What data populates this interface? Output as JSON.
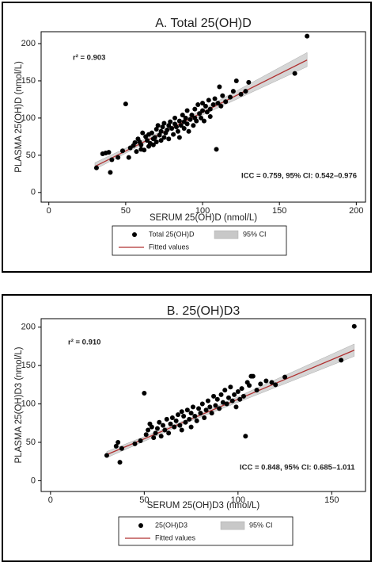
{
  "chart_data": [
    {
      "type": "scatter",
      "title": "A. Total 25(OH)D",
      "x_label": "SERUM 25(OH)D (nmol/L)",
      "y_label": "PLASMA 25(OH)D (nmol/L)",
      "xlim": [
        -5,
        206
      ],
      "ylim": [
        -13,
        216
      ],
      "xticks": [
        0,
        50,
        100,
        150,
        200
      ],
      "yticks": [
        0,
        50,
        100,
        150,
        200
      ],
      "annotations": [
        "r² = 0.903",
        "ICC = 0.759, 95% CI: 0.542–0.976"
      ],
      "series": [
        {
          "name": "Total 25(OH)D",
          "type": "scatter",
          "color": "#000000",
          "x": [
            31,
            35,
            37,
            39,
            40,
            41,
            45,
            48,
            50,
            52,
            53,
            55,
            56,
            57,
            58,
            59,
            60,
            60,
            61,
            62,
            63,
            64,
            65,
            65,
            66,
            67,
            68,
            68,
            69,
            70,
            70,
            71,
            72,
            73,
            73,
            74,
            75,
            75,
            76,
            77,
            78,
            78,
            79,
            80,
            81,
            82,
            82,
            83,
            84,
            85,
            85,
            86,
            87,
            88,
            88,
            89,
            90,
            90,
            91,
            92,
            93,
            94,
            95,
            95,
            96,
            97,
            98,
            99,
            100,
            100,
            101,
            102,
            103,
            104,
            105,
            105,
            107,
            108,
            109,
            110,
            111,
            112,
            113,
            115,
            118,
            120,
            122,
            125,
            128,
            130,
            160,
            168
          ],
          "values": [
            33,
            52,
            53,
            54,
            27,
            44,
            47,
            56,
            119,
            47,
            60,
            63,
            67,
            55,
            72,
            68,
            64,
            58,
            80,
            57,
            75,
            70,
            62,
            78,
            66,
            80,
            72,
            64,
            74,
            85,
            68,
            90,
            77,
            70,
            82,
            88,
            74,
            93,
            80,
            84,
            90,
            72,
            95,
            86,
            78,
            92,
            100,
            88,
            82,
            96,
            74,
            90,
            104,
            95,
            86,
            100,
            110,
            92,
            82,
            98,
            104,
            90,
            112,
            100,
            96,
            118,
            106,
            100,
            110,
            120,
            96,
            116,
            108,
            124,
            112,
            102,
            118,
            126,
            58,
            120,
            142,
            116,
            130,
            122,
            128,
            136,
            150,
            132,
            136,
            148,
            160,
            210
          ]
        },
        {
          "name": "95% CI",
          "type": "area",
          "color": "#c8c8c8",
          "x": [
            30,
            78,
            168
          ],
          "lower": [
            31,
            83,
            169
          ],
          "upper": [
            40,
            87,
            188
          ]
        },
        {
          "name": "Fitted values",
          "type": "line",
          "color": "#b03030",
          "x": [
            30,
            168
          ],
          "values": [
            35,
            178
          ]
        }
      ]
    },
    {
      "type": "scatter",
      "title": "B. 25(OH)D3",
      "x_label": "SERUM 25(OH)D3 (nmol/L)",
      "y_label": "PLASMA 25(OH)D3 (nmol/L)",
      "xlim": [
        -5,
        168
      ],
      "ylim": [
        -14,
        211
      ],
      "xticks": [
        0,
        50,
        100,
        150
      ],
      "yticks": [
        0,
        50,
        100,
        150,
        200
      ],
      "annotations": [
        "r² = 0.910",
        "ICC = 0.848, 95% CI: 0.685–1.011"
      ],
      "series": [
        {
          "name": "25(OH)D3",
          "type": "scatter",
          "color": "#000000",
          "x": [
            30,
            35,
            36,
            37,
            38,
            45,
            48,
            50,
            51,
            52,
            53,
            54,
            55,
            56,
            57,
            58,
            59,
            60,
            61,
            62,
            63,
            64,
            65,
            66,
            67,
            68,
            69,
            70,
            70,
            71,
            72,
            73,
            74,
            75,
            75,
            76,
            77,
            78,
            79,
            80,
            81,
            82,
            83,
            84,
            85,
            86,
            87,
            88,
            89,
            90,
            91,
            92,
            93,
            94,
            95,
            96,
            97,
            98,
            99,
            100,
            101,
            102,
            103,
            104,
            105,
            106,
            107,
            108,
            110,
            112,
            115,
            118,
            120,
            125,
            155,
            162
          ],
          "values": [
            33,
            45,
            50,
            24,
            42,
            48,
            52,
            114,
            60,
            66,
            74,
            70,
            56,
            62,
            68,
            76,
            58,
            72,
            66,
            80,
            62,
            74,
            82,
            70,
            78,
            86,
            72,
            90,
            66,
            84,
            76,
            92,
            80,
            70,
            88,
            96,
            84,
            78,
            94,
            88,
            100,
            82,
            92,
            104,
            96,
            88,
            110,
            98,
            106,
            94,
            112,
            102,
            118,
            100,
            108,
            122,
            104,
            112,
            96,
            116,
            106,
            120,
            110,
            58,
            128,
            124,
            136,
            136,
            118,
            126,
            130,
            128,
            125,
            135,
            157,
            201
          ]
        },
        {
          "name": "95% CI",
          "type": "area",
          "color": "#c8c8c8",
          "x": [
            30,
            75,
            162
          ],
          "lower": [
            30,
            78,
            162
          ],
          "upper": [
            38,
            82,
            178
          ]
        },
        {
          "name": "Fitted values",
          "type": "line",
          "color": "#b03030",
          "x": [
            30,
            162
          ],
          "values": [
            34,
            170
          ]
        }
      ]
    }
  ]
}
